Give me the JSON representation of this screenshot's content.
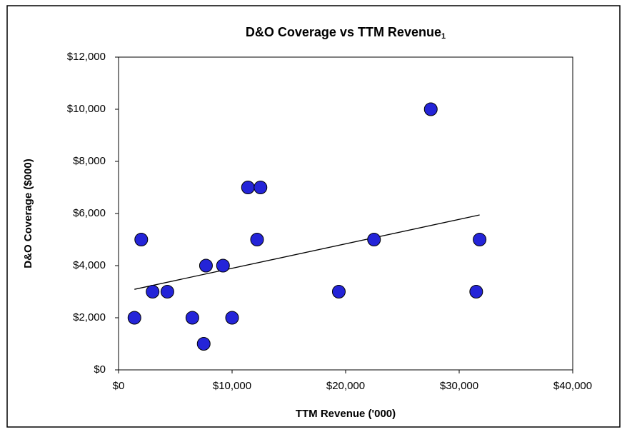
{
  "chart_data": {
    "type": "scatter",
    "title": "D&O Coverage vs TTM Revenue",
    "title_footnote": "1",
    "x_label": "TTM Revenue ('000)",
    "y_label": "D&O Coverage  ($000)",
    "series": [
      {
        "color": "#2424d8",
        "x": [
          1400,
          2000,
          3000,
          4300,
          6500,
          7500,
          7700,
          9200,
          10000,
          11400,
          12500,
          12200,
          19400,
          22500,
          27500,
          31500,
          31800
        ],
        "values": [
          2000,
          5000,
          3000,
          3000,
          2000,
          1000,
          4000,
          4000,
          2000,
          7000,
          7000,
          5000,
          3000,
          5000,
          10000,
          3000,
          5000
        ]
      }
    ],
    "trendline": "linear",
    "xlim": [
      0,
      40000
    ],
    "xticks": [
      {
        "value": 0,
        "label": "$0"
      },
      {
        "value": 10000,
        "label": "$10,000"
      },
      {
        "value": 20000,
        "label": "$20,000"
      },
      {
        "value": 30000,
        "label": "$30,000"
      },
      {
        "value": 40000,
        "label": "$40,000"
      }
    ],
    "ylim": [
      0,
      12000
    ],
    "yticks": [
      {
        "value": 0,
        "label": "$0"
      },
      {
        "value": 2000,
        "label": "$2,000"
      },
      {
        "value": 4000,
        "label": "$4,000"
      },
      {
        "value": 6000,
        "label": "$6,000"
      },
      {
        "value": 8000,
        "label": "$8,000"
      },
      {
        "value": 10000,
        "label": "$10,000"
      },
      {
        "value": 12000,
        "label": "$12,000"
      }
    ],
    "grid": false
  }
}
